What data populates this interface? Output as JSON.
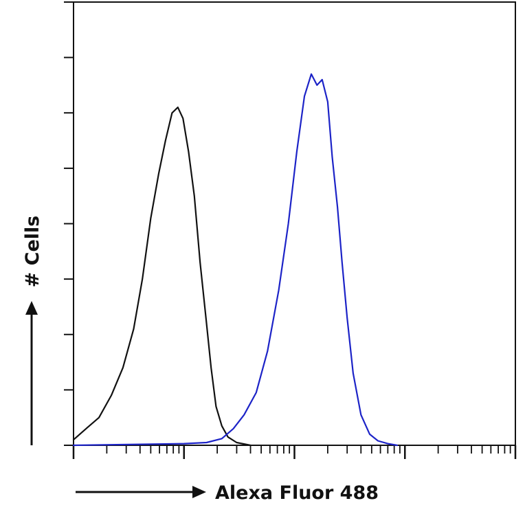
{
  "chart_data": {
    "type": "line",
    "title": "",
    "xlabel": "Alexa Fluor 488",
    "ylabel": "# Cells",
    "x_scale": "log",
    "xlim": [
      1,
      10000
    ],
    "ylim": [
      0,
      8
    ],
    "grid": false,
    "legend": "none",
    "series": [
      {
        "color": "#111111",
        "x": [
          1.0,
          1.3,
          1.7,
          2.2,
          2.8,
          3.5,
          4.2,
          5.0,
          5.9,
          6.8,
          7.8,
          8.8,
          9.8,
          11.0,
          12.4,
          14.0,
          15.8,
          17.6,
          19.5,
          22.0,
          25.0,
          30.0,
          40.0
        ],
        "y": [
          0.1,
          0.3,
          0.5,
          0.9,
          1.4,
          2.1,
          3.0,
          4.1,
          4.9,
          5.5,
          6.0,
          6.1,
          5.9,
          5.3,
          4.5,
          3.3,
          2.3,
          1.4,
          0.7,
          0.35,
          0.15,
          0.05,
          0.0
        ]
      },
      {
        "color": "#1c23c7",
        "x": [
          1.0,
          10,
          16,
          22,
          28,
          35,
          45,
          57,
          72,
          88,
          105,
          123,
          142,
          160,
          178,
          200,
          220,
          245,
          270,
          300,
          340,
          400,
          480,
          570,
          700,
          850
        ],
        "y": [
          0.0,
          0.03,
          0.05,
          0.12,
          0.3,
          0.55,
          0.95,
          1.7,
          2.8,
          4.0,
          5.3,
          6.3,
          6.7,
          6.5,
          6.6,
          6.2,
          5.2,
          4.3,
          3.3,
          2.3,
          1.3,
          0.55,
          0.2,
          0.08,
          0.03,
          0.0
        ]
      }
    ]
  }
}
